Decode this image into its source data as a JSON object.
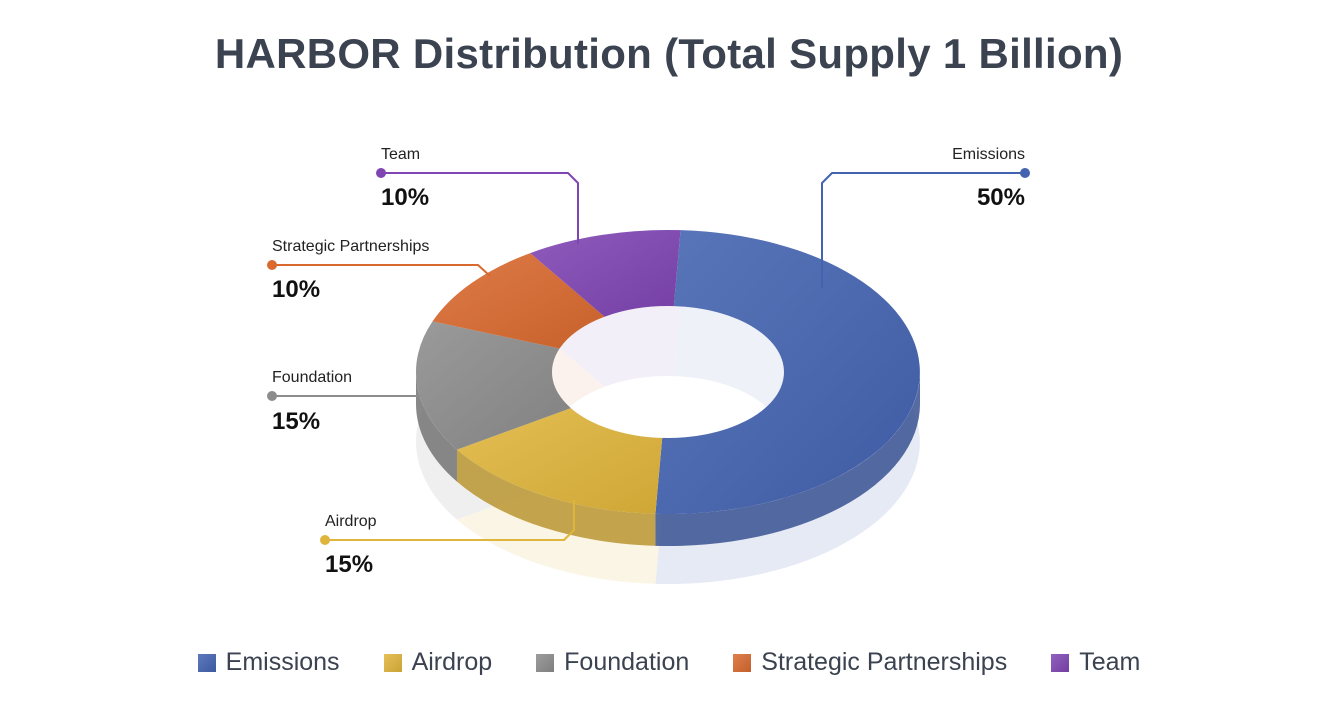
{
  "chart_data": {
    "type": "pie",
    "title": "HARBOR Distribution (Total Supply 1 Billion)",
    "variant": "3d-donut",
    "categories": [
      "Emissions",
      "Airdrop",
      "Foundation",
      "Strategic Partnerships",
      "Team"
    ],
    "values": [
      50,
      15,
      15,
      10,
      10
    ],
    "value_labels": [
      "50%",
      "15%",
      "15%",
      "10%",
      "10%"
    ],
    "colors": [
      "#4363b1",
      "#e0b53b",
      "#8c8c8c",
      "#d9692f",
      "#7f45b3"
    ],
    "legend_position": "bottom"
  }
}
